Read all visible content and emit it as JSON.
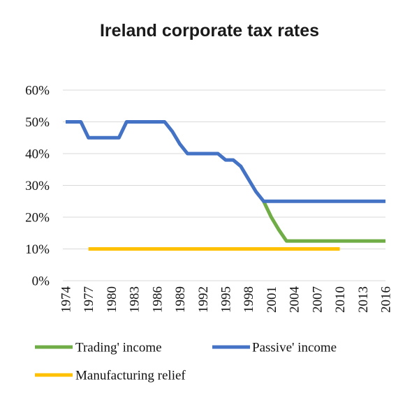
{
  "chart_data": {
    "type": "line",
    "title": "Ireland corporate tax rates",
    "xlabel": "",
    "ylabel": "",
    "categories": [
      "1974",
      "1977",
      "1980",
      "1983",
      "1986",
      "1989",
      "1992",
      "1995",
      "1998",
      "2001",
      "2004",
      "2007",
      "2010",
      "2013",
      "2016"
    ],
    "y_ticks": [
      "0%",
      "10%",
      "20%",
      "30%",
      "40%",
      "50%",
      "60%"
    ],
    "ylim": [
      0,
      60
    ],
    "xlim": [
      1974,
      2016
    ],
    "grid": true,
    "legend_position": "bottom",
    "series": [
      {
        "name": "Trading' income",
        "color": "#70ad47",
        "points": [
          [
            2000,
            25
          ],
          [
            2001,
            20
          ],
          [
            2002,
            16
          ],
          [
            2003,
            12.5
          ],
          [
            2016,
            12.5
          ]
        ]
      },
      {
        "name": "Passive' income",
        "color": "#4472c4",
        "points": [
          [
            1974,
            50
          ],
          [
            1976,
            50
          ],
          [
            1977,
            45
          ],
          [
            1981,
            45
          ],
          [
            1982,
            50
          ],
          [
            1987,
            50
          ],
          [
            1988,
            47
          ],
          [
            1989,
            43
          ],
          [
            1990,
            40
          ],
          [
            1994,
            40
          ],
          [
            1995,
            38
          ],
          [
            1996,
            38
          ],
          [
            1997,
            36
          ],
          [
            1998,
            32
          ],
          [
            1999,
            28
          ],
          [
            2000,
            25
          ],
          [
            2016,
            25
          ]
        ]
      },
      {
        "name": "Manufacturing relief",
        "color": "#ffc000",
        "points": [
          [
            1977,
            10
          ],
          [
            2010,
            10
          ]
        ]
      }
    ]
  }
}
